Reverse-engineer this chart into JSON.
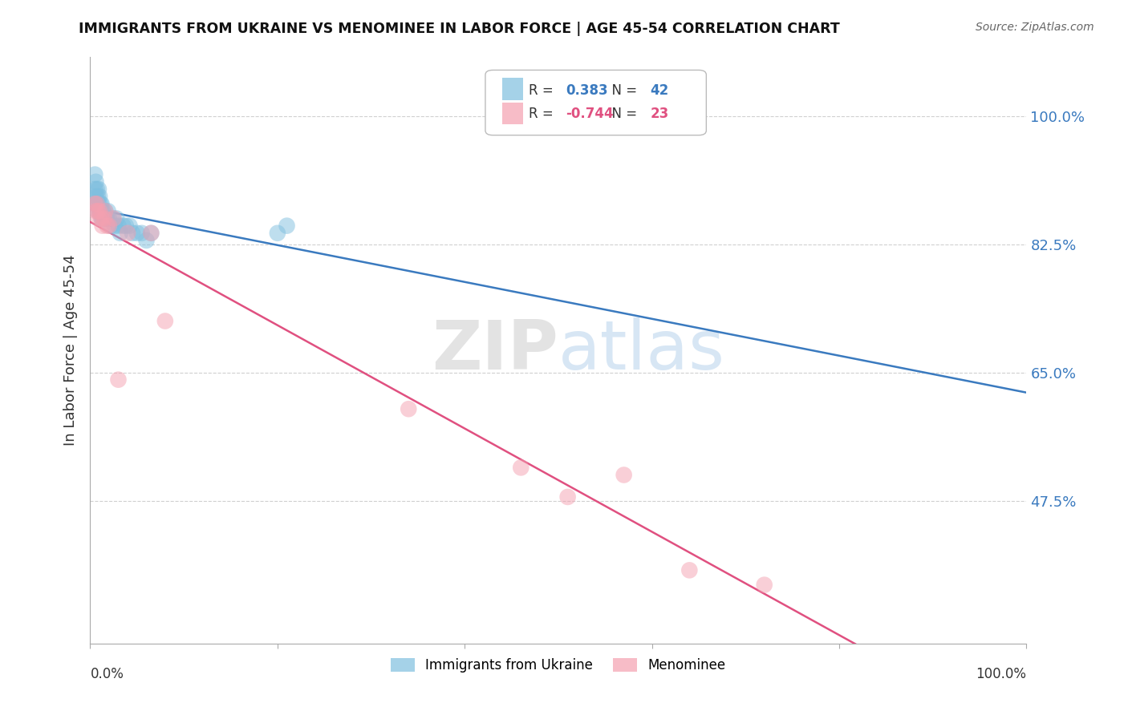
{
  "title": "IMMIGRANTS FROM UKRAINE VS MENOMINEE IN LABOR FORCE | AGE 45-54 CORRELATION CHART",
  "source": "Source: ZipAtlas.com",
  "ylabel": "In Labor Force | Age 45-54",
  "xlim": [
    0.0,
    1.0
  ],
  "ylim": [
    0.28,
    1.08
  ],
  "ytick_vals": [
    0.475,
    0.65,
    0.825,
    1.0
  ],
  "ytick_labels": [
    "47.5%",
    "65.0%",
    "82.5%",
    "100.0%"
  ],
  "legend_ukraine": "Immigrants from Ukraine",
  "legend_menominee": "Menominee",
  "ukraine_R": "0.383",
  "ukraine_N": "42",
  "menominee_R": "-0.744",
  "menominee_N": "23",
  "ukraine_color": "#7fbfdf",
  "menominee_color": "#f4a0b0",
  "ukraine_line_color": "#3a7abf",
  "menominee_line_color": "#e05080",
  "ukraine_x": [
    0.005,
    0.005,
    0.005,
    0.006,
    0.006,
    0.007,
    0.007,
    0.008,
    0.008,
    0.009,
    0.009,
    0.01,
    0.01,
    0.011,
    0.011,
    0.012,
    0.012,
    0.013,
    0.013,
    0.014,
    0.015,
    0.016,
    0.017,
    0.018,
    0.019,
    0.02,
    0.022,
    0.024,
    0.026,
    0.028,
    0.03,
    0.032,
    0.035,
    0.038,
    0.042,
    0.045,
    0.05,
    0.055,
    0.06,
    0.065,
    0.2,
    0.21
  ],
  "ukraine_y": [
    0.88,
    0.9,
    0.92,
    0.89,
    0.91,
    0.88,
    0.9,
    0.87,
    0.89,
    0.88,
    0.9,
    0.87,
    0.89,
    0.87,
    0.88,
    0.86,
    0.88,
    0.86,
    0.87,
    0.87,
    0.86,
    0.87,
    0.86,
    0.86,
    0.87,
    0.86,
    0.85,
    0.86,
    0.85,
    0.86,
    0.85,
    0.84,
    0.85,
    0.85,
    0.85,
    0.84,
    0.84,
    0.84,
    0.83,
    0.84,
    0.84,
    0.85
  ],
  "menominee_x": [
    0.005,
    0.006,
    0.007,
    0.008,
    0.009,
    0.01,
    0.012,
    0.013,
    0.015,
    0.016,
    0.018,
    0.02,
    0.025,
    0.03,
    0.04,
    0.065,
    0.08,
    0.34,
    0.46,
    0.51,
    0.57,
    0.64,
    0.72
  ],
  "menominee_y": [
    0.88,
    0.87,
    0.88,
    0.87,
    0.86,
    0.87,
    0.86,
    0.85,
    0.86,
    0.87,
    0.85,
    0.85,
    0.86,
    0.64,
    0.84,
    0.84,
    0.72,
    0.6,
    0.52,
    0.48,
    0.51,
    0.38,
    0.36
  ],
  "watermark_zip": "ZIP",
  "watermark_atlas": "atlas",
  "background_color": "#ffffff",
  "grid_color": "#d0d0d0"
}
